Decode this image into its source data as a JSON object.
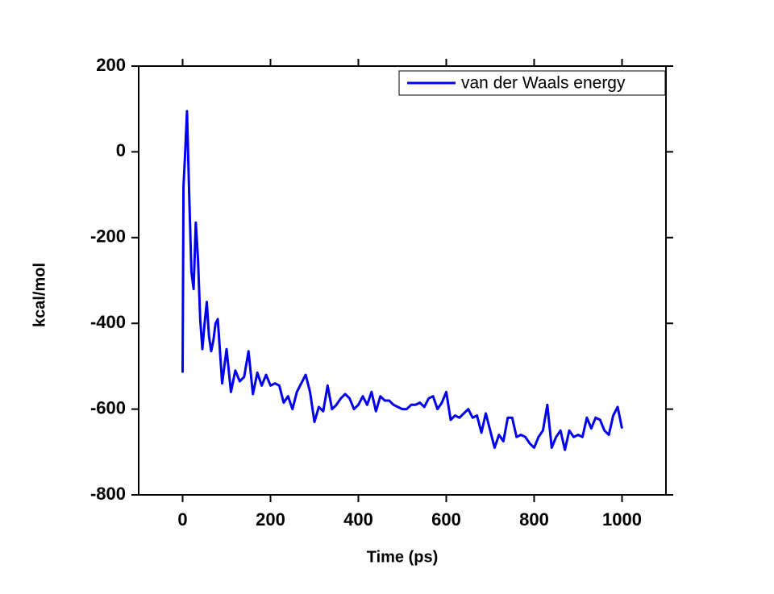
{
  "chart_data": {
    "type": "line",
    "x_label": "Time (ps)",
    "y_label": "kcal/mol",
    "xlim": [
      -100,
      1100
    ],
    "ylim": [
      -800,
      200
    ],
    "xticks": [
      0,
      200,
      400,
      600,
      800,
      1000
    ],
    "yticks": [
      -800,
      -600,
      -400,
      -200,
      0,
      200
    ],
    "legend": "upper right",
    "x": [
      0,
      2,
      5,
      10,
      15,
      20,
      25,
      30,
      35,
      40,
      45,
      50,
      55,
      60,
      65,
      70,
      75,
      80,
      90,
      100,
      110,
      120,
      130,
      140,
      150,
      160,
      170,
      180,
      190,
      200,
      210,
      220,
      230,
      240,
      250,
      260,
      270,
      280,
      290,
      300,
      310,
      320,
      330,
      340,
      350,
      360,
      370,
      380,
      390,
      400,
      410,
      420,
      430,
      440,
      450,
      460,
      470,
      480,
      490,
      500,
      510,
      520,
      530,
      540,
      550,
      560,
      570,
      580,
      590,
      600,
      610,
      620,
      630,
      640,
      650,
      660,
      670,
      680,
      690,
      700,
      710,
      720,
      730,
      740,
      750,
      760,
      770,
      780,
      790,
      800,
      810,
      820,
      830,
      840,
      850,
      860,
      870,
      880,
      890,
      900,
      910,
      920,
      930,
      940,
      950,
      960,
      970,
      980,
      990,
      1000
    ],
    "series": [
      {
        "name": "van der Waals energy",
        "color": "#0000ee",
        "values": [
          -515,
          -80,
          -20,
          95,
          -100,
          -280,
          -320,
          -165,
          -250,
          -390,
          -460,
          -400,
          -350,
          -430,
          -465,
          -440,
          -400,
          -390,
          -540,
          -460,
          -560,
          -510,
          -535,
          -525,
          -465,
          -565,
          -515,
          -545,
          -520,
          -545,
          -540,
          -545,
          -585,
          -570,
          -600,
          -560,
          -540,
          -520,
          -560,
          -630,
          -595,
          -605,
          -545,
          -600,
          -590,
          -575,
          -565,
          -575,
          -600,
          -590,
          -570,
          -590,
          -560,
          -605,
          -570,
          -580,
          -580,
          -590,
          -595,
          -600,
          -600,
          -590,
          -590,
          -585,
          -595,
          -575,
          -570,
          -600,
          -585,
          -560,
          -625,
          -615,
          -620,
          -610,
          -600,
          -620,
          -615,
          -655,
          -610,
          -650,
          -690,
          -660,
          -675,
          -620,
          -620,
          -665,
          -660,
          -665,
          -680,
          -690,
          -665,
          -650,
          -590,
          -690,
          -665,
          -650,
          -695,
          -650,
          -665,
          -660,
          -665,
          -620,
          -645,
          -620,
          -625,
          -650,
          -660,
          -615,
          -595,
          -645
        ]
      }
    ]
  }
}
